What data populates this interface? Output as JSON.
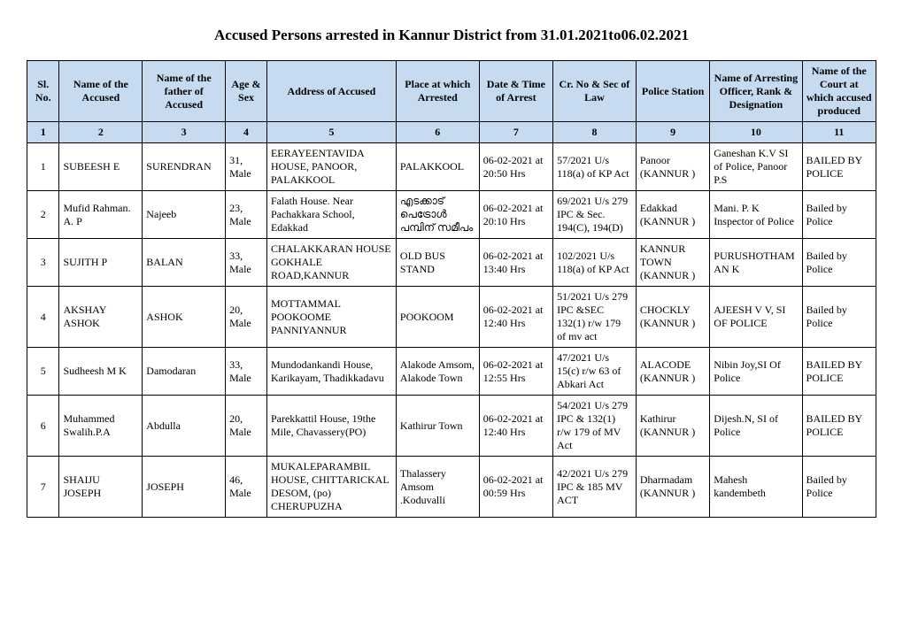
{
  "title": "Accused Persons arrested in   Kannur   District from  31.01.2021to06.02.2021",
  "columns": [
    "Sl. No.",
    "Name of the Accused",
    "Name of the father of Accused",
    "Age & Sex",
    "Address of Accused",
    "Place at which Arrested",
    "Date & Time of Arrest",
    "Cr. No & Sec of Law",
    "Police Station",
    "Name of Arresting Officer, Rank & Designation",
    "Name of the Court at which accused produced"
  ],
  "col_numbers": [
    "1",
    "2",
    "3",
    "4",
    "5",
    "6",
    "7",
    "8",
    "9",
    "10",
    "11"
  ],
  "rows": [
    {
      "sl": "1",
      "name": "SUBEESH E",
      "father": "SURENDRAN",
      "age_sex": "31, Male",
      "address": "EERAYEENTAVIDA HOUSE, PANOOR, PALAKKOOL",
      "place": "PALAKKOOL",
      "datetime": "06-02-2021 at 20:50 Hrs",
      "crno": "57/2021 U/s 118(a) of KP Act",
      "station": "Panoor (KANNUR )",
      "officer": "Ganeshan K.V SI of Police, Panoor P.S",
      "court": "BAILED BY POLICE"
    },
    {
      "sl": "2",
      "name": "Mufid Rahman. A. P",
      "father": "Najeeb",
      "age_sex": "23, Male",
      "address": "Falath House. Near Pachakkara School, Edakkad",
      "place": "എടക്കാട് പെട്രോൾ പമ്പിന് സമീപം",
      "datetime": "06-02-2021 at 20:10 Hrs",
      "crno": "69/2021 U/s 279 IPC & Sec. 194(C), 194(D)",
      "station": "Edakkad (KANNUR )",
      "officer": "Mani. P. K Inspector of Police",
      "court": "Bailed by Police"
    },
    {
      "sl": "3",
      "name": "SUJITH P",
      "father": "BALAN",
      "age_sex": "33, Male",
      "address": "CHALAKKARAN HOUSE GOKHALE ROAD,KANNUR",
      "place": "OLD BUS STAND",
      "datetime": "06-02-2021 at 13:40 Hrs",
      "crno": "102/2021 U/s 118(a) of KP Act",
      "station": "KANNUR TOWN (KANNUR )",
      "officer": "PURUSHOTHAMAN K",
      "court": "Bailed by Police"
    },
    {
      "sl": "4",
      "name": "AKSHAY ASHOK",
      "father": "ASHOK",
      "age_sex": "20, Male",
      "address": "MOTTAMMAL POOKOOME PANNIYANNUR",
      "place": "POOKOOM",
      "datetime": "06-02-2021 at 12:40 Hrs",
      "crno": "51/2021 U/s 279 IPC &SEC 132(1) r/w 179 of mv act",
      "station": "CHOCKLY (KANNUR )",
      "officer": "AJEESH V V, SI OF POLICE",
      "court": "Bailed by Police"
    },
    {
      "sl": "5",
      "name": "Sudheesh M K",
      "father": "Damodaran",
      "age_sex": "33, Male",
      "address": "Mundodankandi House, Karikayam, Thadikkadavu",
      "place": "Alakode Amsom, Alakode Town",
      "datetime": "06-02-2021 at 12:55 Hrs",
      "crno": "47/2021 U/s 15(c) r/w 63 of Abkari Act",
      "station": "ALACODE (KANNUR )",
      "officer": "Nibin Joy,SI Of Police",
      "court": "BAILED BY POLICE"
    },
    {
      "sl": "6",
      "name": "Muhammed Swalih.P.A",
      "father": "Abdulla",
      "age_sex": "20, Male",
      "address": "Parekkattil House, 19the Mile, Chavassery(PO)",
      "place": "Kathirur Town",
      "datetime": "06-02-2021 at 12:40 Hrs",
      "crno": "54/2021 U/s 279 IPC & 132(1) r/w 179 of MV Act",
      "station": "Kathirur (KANNUR )",
      "officer": "Dijesh.N, SI of Police",
      "court": "BAILED BY POLICE"
    },
    {
      "sl": "7",
      "name": "SHAIJU JOSEPH",
      "father": "JOSEPH",
      "age_sex": "46, Male",
      "address": "MUKALEPARAMBIL HOUSE, CHITTARICKAL DESOM, (po) CHERUPUZHA",
      "place": "Thalassery Amsom .Koduvalli",
      "datetime": "06-02-2021 at 00:59 Hrs",
      "crno": "42/2021 U/s 279 IPC & 185 MV ACT",
      "station": "Dharmadam (KANNUR )",
      "officer": "Mahesh kandembeth",
      "court": "Bailed by Police"
    }
  ],
  "styling": {
    "header_bg": "#c7dbf0",
    "border_color": "#000000",
    "font_family": "Times New Roman",
    "title_fontsize_pt": 17,
    "cell_fontsize_pt": 12,
    "page_bg": "#ffffff"
  }
}
